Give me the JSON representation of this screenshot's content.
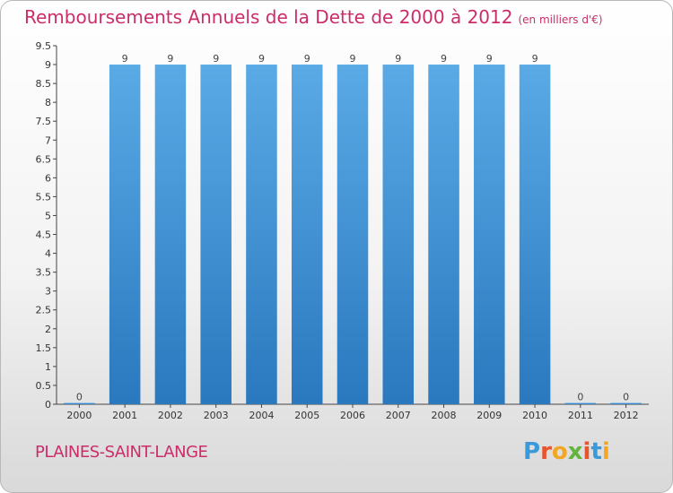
{
  "header": {
    "title": "Remboursements Annuels de la Dette de 2000 à 2012",
    "unit": "(en milliers d'€)"
  },
  "footer": {
    "city": "PLAINES-SAINT-LANGE",
    "logo_letters": [
      "P",
      "r",
      "o",
      "x",
      "i",
      "t",
      "i"
    ],
    "logo_colors": [
      "#3a9ad9",
      "#e8542b",
      "#f2a623",
      "#63b43d",
      "#e8542b",
      "#3a9ad9",
      "#f2a623"
    ]
  },
  "chart_data": {
    "type": "bar",
    "title": "Remboursements Annuels de la Dette de 2000 à 2012",
    "categories": [
      "2000",
      "2001",
      "2002",
      "2003",
      "2004",
      "2005",
      "2006",
      "2007",
      "2008",
      "2009",
      "2010",
      "2011",
      "2012"
    ],
    "values": [
      0,
      9,
      9,
      9,
      9,
      9,
      9,
      9,
      9,
      9,
      9,
      0,
      0
    ],
    "data_labels": [
      "0",
      "9",
      "9",
      "9",
      "9",
      "9",
      "9",
      "9",
      "9",
      "9",
      "9",
      "0",
      "0"
    ],
    "y_ticks": [
      "0",
      "0.5",
      "1",
      "1.5",
      "2",
      "2.5",
      "3",
      "3.5",
      "4",
      "4.5",
      "5",
      "5.5",
      "6",
      "6.5",
      "7",
      "7.5",
      "8",
      "8.5",
      "9",
      "9.5"
    ],
    "ylim": [
      0,
      9.5
    ],
    "grid": false,
    "bar_color": "#3a8fd4",
    "bar_color_light": "#5aaae6"
  }
}
